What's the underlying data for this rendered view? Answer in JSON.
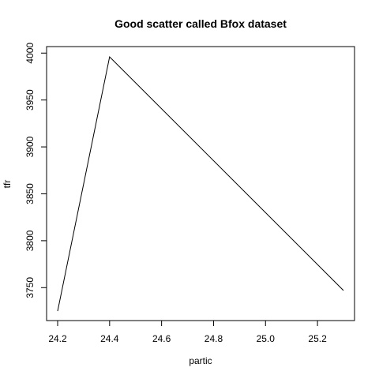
{
  "chart_data": {
    "type": "line",
    "title": "Good scatter called Bfox dataset",
    "xlabel": "partic",
    "ylabel": "tfr",
    "x": [
      24.2,
      24.4,
      25.3
    ],
    "y": [
      3725,
      3996,
      3747
    ],
    "xlim": [
      24.2,
      25.3
    ],
    "ylim": [
      3725,
      3996
    ],
    "xticks": [
      "24.2",
      "24.4",
      "24.6",
      "24.8",
      "25.0",
      "25.2"
    ],
    "yticks": [
      "3750",
      "3800",
      "3850",
      "3900",
      "3950",
      "4000"
    ],
    "grid": false,
    "line_color": "#000000"
  }
}
